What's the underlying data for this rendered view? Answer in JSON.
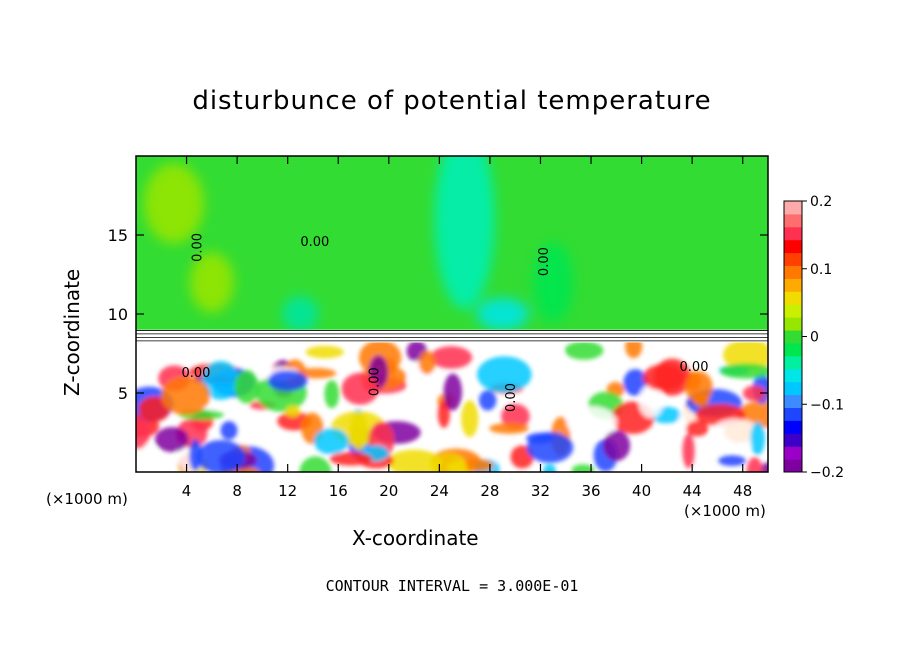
{
  "chart_data": {
    "type": "heatmap",
    "title": "disturbunce of potential temperature",
    "xlabel": "X-coordinate",
    "ylabel": "Z-coordinate",
    "x_unit": "(×1000 m)",
    "z_unit": "(×1000 m)",
    "xlim": [
      0,
      50
    ],
    "ylim": [
      0,
      20
    ],
    "x_ticks": [
      "4",
      "8",
      "12",
      "16",
      "20",
      "24",
      "28",
      "32",
      "36",
      "40",
      "44",
      "48"
    ],
    "y_ticks": [
      "5",
      "10",
      "15"
    ],
    "colorbar": {
      "range": [
        -0.2,
        0.2
      ],
      "tick_labels": [
        "0.2",
        "0.1",
        "0",
        "−0.1",
        "−0.2"
      ],
      "colors": [
        "#7f00a0",
        "#9b00c8",
        "#3c00c8",
        "#0000ff",
        "#1e46ff",
        "#3c8cff",
        "#00c8ff",
        "#00e6e6",
        "#00f0a0",
        "#00e650",
        "#32dc32",
        "#96e600",
        "#c8f000",
        "#f0dc00",
        "#ffaa00",
        "#ff7800",
        "#ff4000",
        "#ff0000",
        "#ff3050",
        "#ff6e6e",
        "#ffaaaa"
      ]
    },
    "contour_labels": [
      "0.00",
      "0.00",
      "0.00",
      "0.00",
      "0.00",
      "0.00",
      "0.00"
    ],
    "footer": "CONTOUR INTERVAL = 3.000E-01"
  }
}
